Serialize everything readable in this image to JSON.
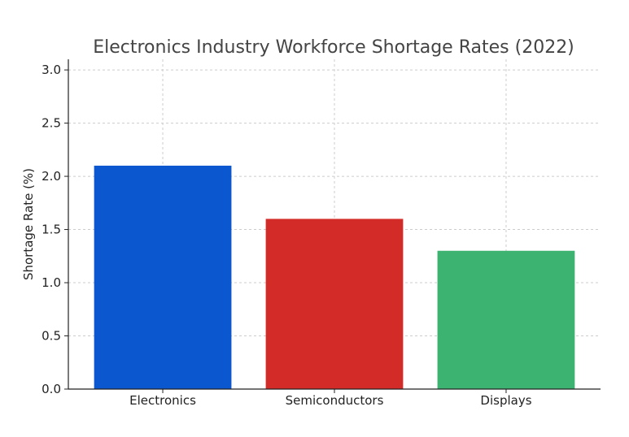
{
  "chart_data": {
    "type": "bar",
    "title": "Electronics Industry Workforce Shortage Rates (2022)",
    "xlabel": "",
    "ylabel": "Shortage Rate (%)",
    "categories": [
      "Electronics",
      "Semiconductors",
      "Displays"
    ],
    "values": [
      2.1,
      1.6,
      1.3
    ],
    "colors": [
      "#0b57d0",
      "#d32b27",
      "#3db372"
    ],
    "ylim": [
      0,
      3.1
    ],
    "yticks": [
      0.0,
      0.5,
      1.0,
      1.5,
      2.0,
      2.5,
      3.0
    ],
    "ytick_labels": [
      "0.0",
      "0.5",
      "1.0",
      "1.5",
      "2.0",
      "2.5",
      "3.0"
    ],
    "grid": true,
    "legend": "none"
  }
}
